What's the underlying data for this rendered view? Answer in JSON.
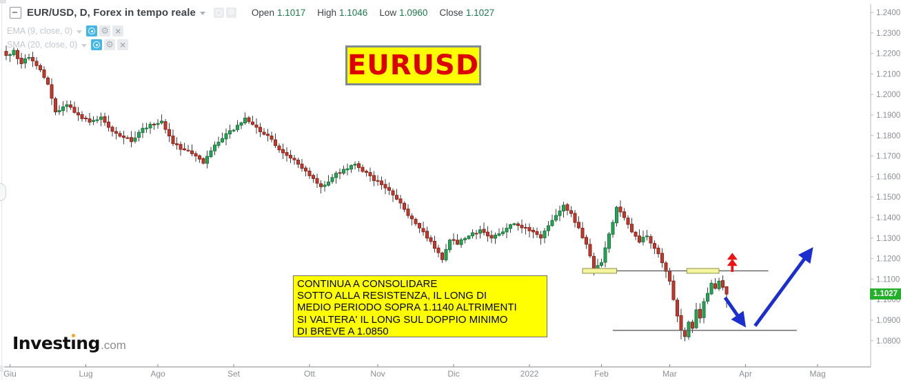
{
  "header": {
    "symbol_title": "EUR/USD, D, Forex in tempo reale",
    "ohlc": [
      {
        "label": "Open",
        "value": "1.1017"
      },
      {
        "label": "High",
        "value": "1.1046"
      },
      {
        "label": "Low",
        "value": "1.0960"
      },
      {
        "label": "Close",
        "value": "1.1027"
      }
    ]
  },
  "indicators": [
    {
      "label": "EMA (9, close, 0)"
    },
    {
      "label": "SMA (20, close, 0)"
    }
  ],
  "icons": {
    "collapse": "minus-box-icon",
    "eye": "visibility-eye-icon",
    "gear": "settings-gear-icon",
    "close": "close-x-icon",
    "gear_glyph": "⚙",
    "close_glyph": "×"
  },
  "pair_tag": "EURUSD",
  "annotation": {
    "lines": [
      "CONTINUA A CONSOLIDARE",
      "SOTTO ALLA RESISTENZA, IL LONG DI",
      "MEDIO PERIODO SOPRA 1.1140 ALTRIMENTI",
      "SI VALTERA' IL LONG SUL DOPPIO MINIMO",
      "DI BREVE A 1.0850"
    ]
  },
  "price_badge": "1.1027",
  "logo": {
    "part1": "Invest",
    "dotless_i": "ı",
    "part2": "ng",
    "suffix": ".com"
  },
  "colors": {
    "candle_up_fill": "#27a455",
    "candle_up_stroke": "#177a3c",
    "candle_down_fill": "#c03a2d",
    "candle_down_stroke": "#8e241b",
    "wick": "#3c3c3c",
    "axis_text": "#8b8f95",
    "axis_line": "#9ba0a6",
    "badge_green": "#25b02c",
    "drawing_blue": "#1b2fd0",
    "drawing_red": "#ee1111",
    "level_line": "#5f5f5f",
    "highlight_fill": "#f5f5a0",
    "highlight_stroke": "#8f8f46",
    "tag_yellow": "#ffff00",
    "tag_text_red": "#dd0000"
  },
  "chart_data": {
    "type": "candlestick",
    "title": "EUR/USD, D, Forex in tempo reale",
    "xlabel": "",
    "ylabel": "",
    "grid": false,
    "legend": false,
    "ylim": [
      1.064,
      1.246
    ],
    "y_tick_labels": [
      "1.2400",
      "1.2300",
      "1.2200",
      "1.2100",
      "1.2000",
      "1.1900",
      "1.1800",
      "1.1700",
      "1.1600",
      "1.1500",
      "1.1400",
      "1.1300",
      "1.1200",
      "1.1100",
      "1.1000",
      "1.0900",
      "1.0800"
    ],
    "y_tick_values": [
      1.24,
      1.23,
      1.22,
      1.21,
      1.2,
      1.19,
      1.18,
      1.17,
      1.16,
      1.15,
      1.14,
      1.13,
      1.12,
      1.11,
      1.1,
      1.09,
      1.08
    ],
    "x_ticks": [
      {
        "label": "Giu",
        "i": 1
      },
      {
        "label": "Lug",
        "i": 21
      },
      {
        "label": "Ago",
        "i": 40
      },
      {
        "label": "Set",
        "i": 60
      },
      {
        "label": "Ott",
        "i": 80
      },
      {
        "label": "Nov",
        "i": 98
      },
      {
        "label": "Dic",
        "i": 118
      },
      {
        "label": "2022",
        "i": 138
      },
      {
        "label": "Feb",
        "i": 157
      },
      {
        "label": "Mar",
        "i": 175
      },
      {
        "label": "Apr",
        "i": 195
      },
      {
        "label": "Mag",
        "i": 214
      }
    ],
    "num_candles": 191,
    "seed": 7,
    "last_candle": {
      "open": 1.1017,
      "high": 1.1046,
      "low": 1.096,
      "close": 1.1027
    },
    "close_anchors": [
      [
        0,
        1.219
      ],
      [
        2,
        1.2215
      ],
      [
        4,
        1.215
      ],
      [
        6,
        1.218
      ],
      [
        9,
        1.212
      ],
      [
        11,
        1.205
      ],
      [
        13,
        1.1915
      ],
      [
        16,
        1.195
      ],
      [
        19,
        1.19
      ],
      [
        22,
        1.1865
      ],
      [
        25,
        1.189
      ],
      [
        28,
        1.182
      ],
      [
        31,
        1.179
      ],
      [
        33,
        1.177
      ],
      [
        35,
        1.1815
      ],
      [
        38,
        1.1855
      ],
      [
        41,
        1.187
      ],
      [
        44,
        1.176
      ],
      [
        47,
        1.173
      ],
      [
        50,
        1.17
      ],
      [
        52,
        1.1665
      ],
      [
        54,
        1.1725
      ],
      [
        57,
        1.1785
      ],
      [
        61,
        1.185
      ],
      [
        63,
        1.1885
      ],
      [
        66,
        1.184
      ],
      [
        69,
        1.18
      ],
      [
        72,
        1.173
      ],
      [
        75,
        1.169
      ],
      [
        78,
        1.164
      ],
      [
        81,
        1.159
      ],
      [
        83,
        1.155
      ],
      [
        86,
        1.1595
      ],
      [
        89,
        1.1635
      ],
      [
        92,
        1.166
      ],
      [
        95,
        1.162
      ],
      [
        97,
        1.158
      ],
      [
        99,
        1.156
      ],
      [
        102,
        1.151
      ],
      [
        105,
        1.144
      ],
      [
        108,
        1.137
      ],
      [
        111,
        1.13
      ],
      [
        113,
        1.125
      ],
      [
        115,
        1.1195
      ],
      [
        117,
        1.129
      ],
      [
        119,
        1.127
      ],
      [
        122,
        1.131
      ],
      [
        125,
        1.134
      ],
      [
        128,
        1.13
      ],
      [
        131,
        1.133
      ],
      [
        134,
        1.137
      ],
      [
        136,
        1.135
      ],
      [
        139,
        1.133
      ],
      [
        141,
        1.13
      ],
      [
        143,
        1.136
      ],
      [
        145,
        1.141
      ],
      [
        147,
        1.146
      ],
      [
        149,
        1.142
      ],
      [
        151,
        1.135
      ],
      [
        153,
        1.127
      ],
      [
        155,
        1.114
      ],
      [
        157,
        1.118
      ],
      [
        159,
        1.132
      ],
      [
        161,
        1.145
      ],
      [
        163,
        1.14
      ],
      [
        165,
        1.133
      ],
      [
        167,
        1.128
      ],
      [
        169,
        1.131
      ],
      [
        171,
        1.125
      ],
      [
        173,
        1.118
      ],
      [
        175,
        1.109
      ],
      [
        176,
        1.1
      ],
      [
        177,
        1.092
      ],
      [
        178,
        1.085
      ],
      [
        179,
        1.082
      ],
      [
        180,
        1.089
      ],
      [
        181,
        1.086
      ],
      [
        182,
        1.095
      ],
      [
        183,
        1.091
      ],
      [
        184,
        1.099
      ],
      [
        185,
        1.103
      ],
      [
        186,
        1.108
      ],
      [
        187,
        1.1055
      ],
      [
        188,
        1.109
      ],
      [
        189,
        1.106
      ],
      [
        190,
        1.1027
      ]
    ],
    "drawings": {
      "resistance_line": {
        "price": 1.114,
        "i1": 152,
        "i2": 201
      },
      "support_line": {
        "price": 1.085,
        "i1": 160,
        "i2": 208.5
      },
      "highlight_boxes": [
        {
          "price": 1.114,
          "i1": 152,
          "i2": 161
        },
        {
          "price": 1.114,
          "i1": 179.5,
          "i2": 188
        }
      ],
      "red_double_arrow": {
        "i": 191.5,
        "price_from": 1.1135,
        "price_to": 1.1228
      },
      "blue_arrows": [
        {
          "from_i": 189.6,
          "from_price": 1.101,
          "to_i": 194.3,
          "to_price": 1.0885
        },
        {
          "from_i": 197.5,
          "from_price": 1.0872,
          "to_i": 212.0,
          "to_price": 1.1235
        }
      ]
    }
  }
}
